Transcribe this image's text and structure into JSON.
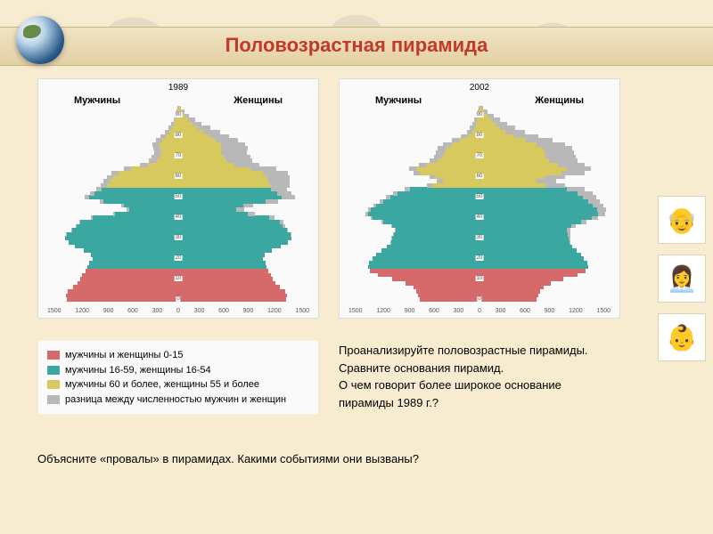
{
  "title": "Половозрастная  пирамида",
  "colors": {
    "young": "#d66a6a",
    "working": "#3aa8a0",
    "old": "#d8c95e",
    "diff": "#b8b8b8",
    "bg_panel": "#fafafa",
    "slide_bg": "#f8ecd0",
    "title_color": "#c0392b"
  },
  "legend": [
    {
      "color": "#d66a6a",
      "label": "мужчины и женщины 0-15"
    },
    {
      "color": "#3aa8a0",
      "label": "мужчины 16-59, женщины 16-54"
    },
    {
      "color": "#d8c95e",
      "label": "мужчины 60 и более, женщины 55 и более"
    },
    {
      "color": "#b8b8b8",
      "label": "разница между численностью мужчин и женщин"
    }
  ],
  "pyramids": [
    {
      "year": "1989",
      "label_m": "Мужчины",
      "label_f": "Женщины",
      "x_ticks": [
        "1500",
        "1200",
        "900",
        "600",
        "300",
        "0",
        "300",
        "600",
        "900",
        "1200",
        "1500"
      ],
      "x_max": 1500,
      "age_ticks": [
        0,
        10,
        20,
        30,
        40,
        50,
        60,
        70,
        80,
        90
      ],
      "age_max": 95,
      "bars": [
        {
          "a": 0,
          "m": 1280,
          "f": 1230,
          "d": 0,
          "c": "young"
        },
        {
          "a": 2,
          "m": 1290,
          "f": 1240,
          "d": 0,
          "c": "young"
        },
        {
          "a": 4,
          "m": 1270,
          "f": 1220,
          "d": 0,
          "c": "young"
        },
        {
          "a": 6,
          "m": 1200,
          "f": 1160,
          "d": 0,
          "c": "young"
        },
        {
          "a": 8,
          "m": 1150,
          "f": 1110,
          "d": 0,
          "c": "young"
        },
        {
          "a": 10,
          "m": 1120,
          "f": 1080,
          "d": 0,
          "c": "young"
        },
        {
          "a": 12,
          "m": 1100,
          "f": 1060,
          "d": 0,
          "c": "young"
        },
        {
          "a": 14,
          "m": 1060,
          "f": 1030,
          "d": 0,
          "c": "young"
        },
        {
          "a": 16,
          "m": 1040,
          "f": 1010,
          "d": 0,
          "c": "working"
        },
        {
          "a": 18,
          "m": 1020,
          "f": 1000,
          "d": 0,
          "c": "working"
        },
        {
          "a": 20,
          "m": 980,
          "f": 970,
          "d": 0,
          "c": "working"
        },
        {
          "a": 22,
          "m": 1000,
          "f": 990,
          "d": 0,
          "c": "working"
        },
        {
          "a": 24,
          "m": 1080,
          "f": 1070,
          "d": 0,
          "c": "working"
        },
        {
          "a": 26,
          "m": 1180,
          "f": 1170,
          "d": 0,
          "c": "working"
        },
        {
          "a": 28,
          "m": 1260,
          "f": 1260,
          "d": 0,
          "c": "working"
        },
        {
          "a": 30,
          "m": 1300,
          "f": 1300,
          "d": 0,
          "c": "working"
        },
        {
          "a": 32,
          "m": 1280,
          "f": 1290,
          "d": 10,
          "c": "working"
        },
        {
          "a": 34,
          "m": 1220,
          "f": 1240,
          "d": 20,
          "c": "working"
        },
        {
          "a": 36,
          "m": 1160,
          "f": 1190,
          "d": 30,
          "c": "working"
        },
        {
          "a": 38,
          "m": 1120,
          "f": 1160,
          "d": 40,
          "c": "working"
        },
        {
          "a": 40,
          "m": 980,
          "f": 1040,
          "d": 60,
          "c": "working"
        },
        {
          "a": 42,
          "m": 720,
          "f": 800,
          "d": 80,
          "c": "working"
        },
        {
          "a": 44,
          "m": 560,
          "f": 660,
          "d": 100,
          "c": "working"
        },
        {
          "a": 46,
          "m": 620,
          "f": 740,
          "d": 120,
          "c": "working"
        },
        {
          "a": 48,
          "m": 860,
          "f": 1000,
          "d": 140,
          "c": "working"
        },
        {
          "a": 50,
          "m": 1020,
          "f": 1180,
          "d": 160,
          "c": "working"
        },
        {
          "a": 52,
          "m": 960,
          "f": 1130,
          "d": 170,
          "c": "working"
        },
        {
          "a": 54,
          "m": 880,
          "f": 1060,
          "d": 180,
          "c": "working"
        },
        {
          "a": 56,
          "m": 820,
          "f": 1050,
          "d": 230,
          "c": "old"
        },
        {
          "a": 58,
          "m": 780,
          "f": 1030,
          "d": 250,
          "c": "old"
        },
        {
          "a": 60,
          "m": 740,
          "f": 1010,
          "d": 270,
          "c": "old"
        },
        {
          "a": 62,
          "m": 680,
          "f": 970,
          "d": 290,
          "c": "old"
        },
        {
          "a": 64,
          "m": 540,
          "f": 830,
          "d": 290,
          "c": "old"
        },
        {
          "a": 66,
          "m": 350,
          "f": 640,
          "d": 290,
          "c": "old"
        },
        {
          "a": 68,
          "m": 250,
          "f": 550,
          "d": 300,
          "c": "old"
        },
        {
          "a": 70,
          "m": 210,
          "f": 520,
          "d": 310,
          "c": "old"
        },
        {
          "a": 72,
          "m": 190,
          "f": 490,
          "d": 300,
          "c": "old"
        },
        {
          "a": 74,
          "m": 200,
          "f": 500,
          "d": 300,
          "c": "old"
        },
        {
          "a": 76,
          "m": 210,
          "f": 490,
          "d": 280,
          "c": "old"
        },
        {
          "a": 78,
          "m": 180,
          "f": 430,
          "d": 250,
          "c": "old"
        },
        {
          "a": 80,
          "m": 140,
          "f": 360,
          "d": 220,
          "c": "old"
        },
        {
          "a": 82,
          "m": 100,
          "f": 290,
          "d": 190,
          "c": "old"
        },
        {
          "a": 84,
          "m": 70,
          "f": 220,
          "d": 150,
          "c": "old"
        },
        {
          "a": 86,
          "m": 50,
          "f": 160,
          "d": 110,
          "c": "old"
        },
        {
          "a": 88,
          "m": 30,
          "f": 110,
          "d": 80,
          "c": "old"
        },
        {
          "a": 90,
          "m": 18,
          "f": 70,
          "d": 52,
          "c": "old"
        },
        {
          "a": 92,
          "m": 10,
          "f": 40,
          "d": 30,
          "c": "old"
        },
        {
          "a": 94,
          "m": 5,
          "f": 20,
          "d": 15,
          "c": "old"
        }
      ]
    },
    {
      "year": "2002",
      "label_m": "Мужчины",
      "label_f": "Женщины",
      "x_ticks": [
        "1500",
        "1200",
        "900",
        "600",
        "300",
        "0",
        "300",
        "600",
        "900",
        "1200",
        "1500"
      ],
      "x_max": 1500,
      "age_ticks": [
        0,
        10,
        20,
        30,
        40,
        50,
        60,
        70,
        80,
        90
      ],
      "age_max": 95,
      "bars": [
        {
          "a": 0,
          "m": 680,
          "f": 650,
          "d": 0,
          "c": "young"
        },
        {
          "a": 2,
          "m": 700,
          "f": 670,
          "d": 0,
          "c": "young"
        },
        {
          "a": 4,
          "m": 720,
          "f": 690,
          "d": 0,
          "c": "young"
        },
        {
          "a": 6,
          "m": 760,
          "f": 730,
          "d": 0,
          "c": "young"
        },
        {
          "a": 8,
          "m": 850,
          "f": 820,
          "d": 0,
          "c": "young"
        },
        {
          "a": 10,
          "m": 1000,
          "f": 960,
          "d": 0,
          "c": "young"
        },
        {
          "a": 12,
          "m": 1160,
          "f": 1120,
          "d": 0,
          "c": "young"
        },
        {
          "a": 14,
          "m": 1260,
          "f": 1210,
          "d": 0,
          "c": "young"
        },
        {
          "a": 16,
          "m": 1280,
          "f": 1240,
          "d": 0,
          "c": "working"
        },
        {
          "a": 18,
          "m": 1270,
          "f": 1230,
          "d": 0,
          "c": "working"
        },
        {
          "a": 20,
          "m": 1220,
          "f": 1190,
          "d": 0,
          "c": "working"
        },
        {
          "a": 22,
          "m": 1180,
          "f": 1160,
          "d": 0,
          "c": "working"
        },
        {
          "a": 24,
          "m": 1120,
          "f": 1110,
          "d": 0,
          "c": "working"
        },
        {
          "a": 26,
          "m": 1060,
          "f": 1060,
          "d": 0,
          "c": "working"
        },
        {
          "a": 28,
          "m": 1020,
          "f": 1030,
          "d": 10,
          "c": "working"
        },
        {
          "a": 30,
          "m": 1000,
          "f": 1020,
          "d": 20,
          "c": "working"
        },
        {
          "a": 32,
          "m": 980,
          "f": 1010,
          "d": 30,
          "c": "working"
        },
        {
          "a": 34,
          "m": 960,
          "f": 1000,
          "d": 40,
          "c": "working"
        },
        {
          "a": 36,
          "m": 1000,
          "f": 1050,
          "d": 50,
          "c": "working"
        },
        {
          "a": 38,
          "m": 1100,
          "f": 1160,
          "d": 60,
          "c": "working"
        },
        {
          "a": 40,
          "m": 1220,
          "f": 1290,
          "d": 70,
          "c": "working"
        },
        {
          "a": 42,
          "m": 1280,
          "f": 1360,
          "d": 80,
          "c": "working"
        },
        {
          "a": 44,
          "m": 1250,
          "f": 1350,
          "d": 100,
          "c": "working"
        },
        {
          "a": 46,
          "m": 1180,
          "f": 1300,
          "d": 120,
          "c": "working"
        },
        {
          "a": 48,
          "m": 1100,
          "f": 1240,
          "d": 140,
          "c": "working"
        },
        {
          "a": 50,
          "m": 1020,
          "f": 1180,
          "d": 160,
          "c": "working"
        },
        {
          "a": 52,
          "m": 940,
          "f": 1120,
          "d": 180,
          "c": "working"
        },
        {
          "a": 54,
          "m": 800,
          "f": 1000,
          "d": 200,
          "c": "working"
        },
        {
          "a": 56,
          "m": 540,
          "f": 760,
          "d": 220,
          "c": "old"
        },
        {
          "a": 58,
          "m": 420,
          "f": 650,
          "d": 230,
          "c": "old"
        },
        {
          "a": 60,
          "m": 500,
          "f": 740,
          "d": 240,
          "c": "old"
        },
        {
          "a": 62,
          "m": 680,
          "f": 940,
          "d": 260,
          "c": "old"
        },
        {
          "a": 64,
          "m": 720,
          "f": 1000,
          "d": 280,
          "c": "old"
        },
        {
          "a": 66,
          "m": 600,
          "f": 900,
          "d": 300,
          "c": "old"
        },
        {
          "a": 68,
          "m": 480,
          "f": 800,
          "d": 320,
          "c": "old"
        },
        {
          "a": 70,
          "m": 420,
          "f": 760,
          "d": 340,
          "c": "old"
        },
        {
          "a": 72,
          "m": 400,
          "f": 740,
          "d": 340,
          "c": "old"
        },
        {
          "a": 74,
          "m": 380,
          "f": 720,
          "d": 340,
          "c": "old"
        },
        {
          "a": 76,
          "m": 320,
          "f": 650,
          "d": 330,
          "c": "old"
        },
        {
          "a": 78,
          "m": 220,
          "f": 530,
          "d": 310,
          "c": "old"
        },
        {
          "a": 80,
          "m": 130,
          "f": 400,
          "d": 270,
          "c": "old"
        },
        {
          "a": 82,
          "m": 80,
          "f": 300,
          "d": 220,
          "c": "old"
        },
        {
          "a": 84,
          "m": 55,
          "f": 230,
          "d": 175,
          "c": "old"
        },
        {
          "a": 86,
          "m": 40,
          "f": 180,
          "d": 140,
          "c": "old"
        },
        {
          "a": 88,
          "m": 28,
          "f": 130,
          "d": 102,
          "c": "old"
        },
        {
          "a": 90,
          "m": 18,
          "f": 90,
          "d": 72,
          "c": "old"
        },
        {
          "a": 92,
          "m": 10,
          "f": 50,
          "d": 40,
          "c": "old"
        },
        {
          "a": 94,
          "m": 5,
          "f": 25,
          "d": 20,
          "c": "old"
        }
      ]
    }
  ],
  "questions": {
    "line1": "Проанализируйте  половозрастные  пирамиды.",
    "line2": "Сравните  основания  пирамид.",
    "line3": "О чем говорит  более  широкое  основание",
    "line4": "пирамиды  1989 г.?"
  },
  "footer": "Объясните  «провалы»  в  пирамидах.   Какими   событиями  они  вызваны?",
  "clips": [
    "👴",
    "👩‍💼",
    "👶"
  ]
}
